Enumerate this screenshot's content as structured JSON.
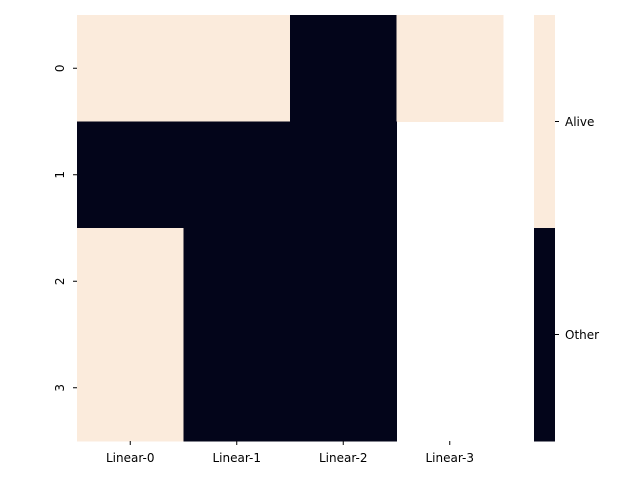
{
  "chart_data": {
    "type": "heatmap",
    "title": "",
    "xlabel": "",
    "ylabel": "",
    "x_categories": [
      "Linear-0",
      "Linear-1",
      "Linear-2",
      "Linear-3"
    ],
    "y_categories": [
      "0",
      "1",
      "2",
      "3"
    ],
    "values": [
      [
        "Alive",
        "Alive",
        "Other",
        "Alive"
      ],
      [
        "Other",
        "Other",
        "Other",
        null
      ],
      [
        "Alive",
        "Other",
        "Other",
        null
      ],
      [
        "Alive",
        "Other",
        "Other",
        null
      ]
    ],
    "colorbar": {
      "labels": [
        "Alive",
        "Other"
      ],
      "colors": {
        "Alive": "#fbebdc",
        "Other": "#03051a"
      }
    },
    "missing_cells": "blank"
  }
}
